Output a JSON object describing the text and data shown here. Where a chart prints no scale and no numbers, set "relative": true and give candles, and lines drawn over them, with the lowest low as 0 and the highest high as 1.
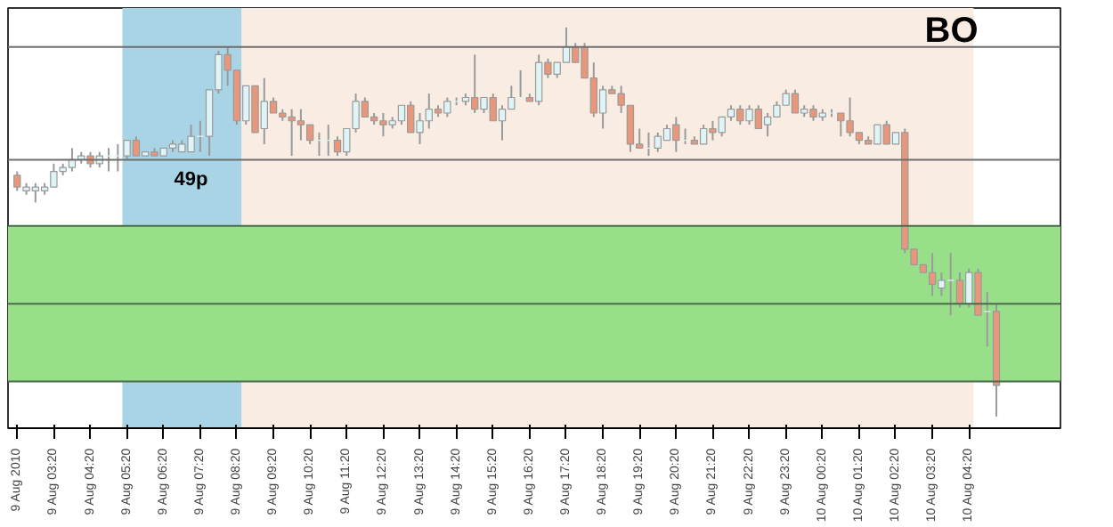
{
  "chart_data": {
    "type": "candlestick",
    "relative": true,
    "grid": false,
    "categories": [
      "9 Aug 2010",
      null,
      null,
      null,
      "9 Aug 03:20",
      null,
      null,
      null,
      "9 Aug 04:20",
      null,
      null,
      null,
      "9 Aug 05:20",
      null,
      null,
      null,
      "9 Aug 06:20",
      null,
      null,
      null,
      "9 Aug 07:20",
      null,
      null,
      null,
      "9 Aug 08:20",
      null,
      null,
      null,
      "9 Aug 09:20",
      null,
      null,
      null,
      "9 Aug 10:20",
      null,
      null,
      null,
      "9 Aug 11:20",
      null,
      null,
      null,
      "9 Aug 12:20",
      null,
      null,
      null,
      "9 Aug 13:20",
      null,
      null,
      null,
      "9 Aug 14:20",
      null,
      null,
      null,
      "9 Aug 15:20",
      null,
      null,
      null,
      "9 Aug 16:20",
      null,
      null,
      null,
      "9 Aug 17:20",
      null,
      null,
      null,
      "9 Aug 18:20",
      null,
      null,
      null,
      "9 Aug 19:20",
      null,
      null,
      null,
      "9 Aug 20:20",
      null,
      null,
      null,
      "9 Aug 21:20",
      null,
      null,
      null,
      "9 Aug 22:20",
      null,
      null,
      null,
      "9 Aug 23:20",
      null,
      null,
      null,
      "10 Aug 00:20",
      null,
      null,
      null,
      "10 Aug 01:20",
      null,
      null,
      null,
      "10 Aug 02:20",
      null,
      null,
      null,
      "10 Aug 03:20",
      null,
      null,
      null,
      "10 Aug 04:20",
      null,
      null,
      null
    ],
    "ohlc": [
      [
        0.62,
        0.63,
        0.58,
        0.59
      ],
      [
        0.58,
        0.6,
        0.57,
        0.59
      ],
      [
        0.58,
        0.6,
        0.55,
        0.59
      ],
      [
        0.58,
        0.6,
        0.57,
        0.59
      ],
      [
        0.59,
        0.65,
        0.59,
        0.63
      ],
      [
        0.63,
        0.65,
        0.62,
        0.64
      ],
      [
        0.64,
        0.69,
        0.63,
        0.66
      ],
      [
        0.66,
        0.68,
        0.65,
        0.67
      ],
      [
        0.67,
        0.68,
        0.64,
        0.65
      ],
      [
        0.65,
        0.68,
        0.64,
        0.67
      ],
      [
        0.67,
        0.69,
        0.63,
        0.67
      ],
      [
        0.67,
        0.7,
        0.63,
        0.67
      ],
      [
        0.67,
        0.71,
        0.66,
        0.71
      ],
      [
        0.71,
        0.72,
        0.67,
        0.67
      ],
      [
        0.67,
        0.68,
        0.67,
        0.68
      ],
      [
        0.68,
        0.69,
        0.67,
        0.67
      ],
      [
        0.67,
        0.69,
        0.67,
        0.69
      ],
      [
        0.69,
        0.71,
        0.68,
        0.7
      ],
      [
        0.68,
        0.71,
        0.68,
        0.7
      ],
      [
        0.68,
        0.75,
        0.68,
        0.72
      ],
      [
        0.72,
        0.76,
        0.68,
        0.72
      ],
      [
        0.72,
        0.84,
        0.67,
        0.84
      ],
      [
        0.84,
        0.94,
        0.83,
        0.93
      ],
      [
        0.93,
        0.95,
        0.85,
        0.89
      ],
      [
        0.89,
        0.89,
        0.75,
        0.76
      ],
      [
        0.76,
        0.85,
        0.75,
        0.85
      ],
      [
        0.85,
        0.85,
        0.73,
        0.73
      ],
      [
        0.74,
        0.87,
        0.7,
        0.81
      ],
      [
        0.81,
        0.82,
        0.78,
        0.78
      ],
      [
        0.78,
        0.79,
        0.76,
        0.77
      ],
      [
        0.77,
        0.79,
        0.67,
        0.76
      ],
      [
        0.76,
        0.79,
        0.71,
        0.75
      ],
      [
        0.75,
        0.75,
        0.7,
        0.71
      ],
      [
        0.71,
        0.73,
        0.67,
        0.71
      ],
      [
        0.71,
        0.75,
        0.67,
        0.71
      ],
      [
        0.71,
        0.72,
        0.67,
        0.68
      ],
      [
        0.68,
        0.74,
        0.67,
        0.74
      ],
      [
        0.74,
        0.83,
        0.73,
        0.81
      ],
      [
        0.81,
        0.82,
        0.77,
        0.77
      ],
      [
        0.77,
        0.78,
        0.75,
        0.76
      ],
      [
        0.76,
        0.78,
        0.72,
        0.75
      ],
      [
        0.75,
        0.77,
        0.74,
        0.76
      ],
      [
        0.76,
        0.8,
        0.75,
        0.8
      ],
      [
        0.8,
        0.81,
        0.73,
        0.73
      ],
      [
        0.73,
        0.78,
        0.7,
        0.76
      ],
      [
        0.76,
        0.83,
        0.74,
        0.79
      ],
      [
        0.79,
        0.8,
        0.77,
        0.78
      ],
      [
        0.78,
        0.82,
        0.77,
        0.81
      ],
      [
        0.81,
        0.82,
        0.8,
        0.81
      ],
      [
        0.81,
        0.83,
        0.8,
        0.82
      ],
      [
        0.82,
        0.93,
        0.78,
        0.79
      ],
      [
        0.79,
        0.82,
        0.78,
        0.82
      ],
      [
        0.82,
        0.83,
        0.76,
        0.76
      ],
      [
        0.76,
        0.8,
        0.71,
        0.79
      ],
      [
        0.79,
        0.85,
        0.79,
        0.82
      ],
      [
        0.82,
        0.89,
        0.82,
        0.82
      ],
      [
        0.82,
        0.83,
        0.81,
        0.81
      ],
      [
        0.81,
        0.93,
        0.8,
        0.91
      ],
      [
        0.91,
        0.92,
        0.87,
        0.88
      ],
      [
        0.88,
        0.91,
        0.87,
        0.91
      ],
      [
        0.91,
        1.0,
        0.91,
        0.95
      ],
      [
        0.95,
        0.96,
        0.91,
        0.91
      ],
      [
        0.95,
        0.96,
        0.87,
        0.87
      ],
      [
        0.87,
        0.91,
        0.77,
        0.78
      ],
      [
        0.78,
        0.85,
        0.74,
        0.84
      ],
      [
        0.84,
        0.85,
        0.83,
        0.83
      ],
      [
        0.83,
        0.85,
        0.78,
        0.8
      ],
      [
        0.8,
        0.8,
        0.68,
        0.7
      ],
      [
        0.7,
        0.74,
        0.69,
        0.69
      ],
      [
        0.69,
        0.73,
        0.67,
        0.69
      ],
      [
        0.69,
        0.73,
        0.68,
        0.72
      ],
      [
        0.71,
        0.75,
        0.71,
        0.74
      ],
      [
        0.75,
        0.77,
        0.68,
        0.71
      ],
      [
        0.71,
        0.74,
        0.7,
        0.71
      ],
      [
        0.71,
        0.72,
        0.7,
        0.7
      ],
      [
        0.7,
        0.75,
        0.7,
        0.74
      ],
      [
        0.74,
        0.76,
        0.71,
        0.73
      ],
      [
        0.73,
        0.77,
        0.72,
        0.77
      ],
      [
        0.77,
        0.8,
        0.76,
        0.79
      ],
      [
        0.79,
        0.8,
        0.75,
        0.76
      ],
      [
        0.76,
        0.8,
        0.75,
        0.79
      ],
      [
        0.79,
        0.8,
        0.74,
        0.74
      ],
      [
        0.75,
        0.78,
        0.72,
        0.77
      ],
      [
        0.77,
        0.81,
        0.77,
        0.8
      ],
      [
        0.8,
        0.84,
        0.8,
        0.83
      ],
      [
        0.83,
        0.84,
        0.78,
        0.78
      ],
      [
        0.78,
        0.8,
        0.77,
        0.79
      ],
      [
        0.79,
        0.8,
        0.76,
        0.77
      ],
      [
        0.77,
        0.79,
        0.76,
        0.78
      ],
      [
        0.78,
        0.79,
        0.77,
        0.78
      ],
      [
        0.78,
        0.78,
        0.72,
        0.76
      ],
      [
        0.76,
        0.82,
        0.72,
        0.73
      ],
      [
        0.73,
        0.73,
        0.7,
        0.71
      ],
      [
        0.71,
        0.72,
        0.7,
        0.7
      ],
      [
        0.7,
        0.75,
        0.7,
        0.75
      ],
      [
        0.75,
        0.76,
        0.7,
        0.7
      ],
      [
        0.7,
        0.73,
        0.7,
        0.73
      ],
      [
        0.73,
        0.74,
        0.42,
        0.43
      ],
      [
        0.43,
        0.43,
        0.39,
        0.39
      ],
      [
        0.39,
        0.39,
        0.37,
        0.37
      ],
      [
        0.37,
        0.42,
        0.31,
        0.34
      ],
      [
        0.33,
        0.37,
        0.31,
        0.35
      ],
      [
        0.35,
        0.42,
        0.26,
        0.35
      ],
      [
        0.35,
        0.37,
        0.28,
        0.29
      ],
      [
        0.29,
        0.38,
        0.28,
        0.37
      ],
      [
        0.37,
        0.38,
        0.26,
        0.26
      ],
      [
        0.27,
        0.32,
        0.18,
        0.27
      ],
      [
        0.27,
        0.29,
        0.0,
        0.08
      ]
    ],
    "colors": [
      "#e9977b",
      "#dff4f6",
      "#dff4f6",
      "#dff4f6",
      "#dff4f6",
      "#dff4f6",
      "#dff4f6",
      "#dff4f6",
      "#e9977b",
      "#dff4f6",
      "#dff4f6",
      "#dff4f6",
      "#dff4f6",
      "#e9977b",
      "#dff4f6",
      "#e9977b",
      "#dff4f6",
      "#dff4f6",
      "#dff4f6",
      "#dff4f6",
      "#dff4f6",
      "#dff4f6",
      "#dff4f6",
      "#e9977b",
      "#e9977b",
      "#dff4f6",
      "#e9977b",
      "#dff4f6",
      "#e9977b",
      "#e9977b",
      "#e9977b",
      "#e9977b",
      "#e9977b",
      "#dff4f6",
      "#dff4f6",
      "#e9977b",
      "#dff4f6",
      "#dff4f6",
      "#e9977b",
      "#e9977b",
      "#e9977b",
      "#dff4f6",
      "#dff4f6",
      "#e9977b",
      "#dff4f6",
      "#dff4f6",
      "#e9977b",
      "#dff4f6",
      "#dff4f6",
      "#dff4f6",
      "#e9977b",
      "#dff4f6",
      "#e9977b",
      "#dff4f6",
      "#dff4f6",
      "#dff4f6",
      "#e9977b",
      "#dff4f6",
      "#e9977b",
      "#dff4f6",
      "#dff4f6",
      "#e9977b",
      "#e9977b",
      "#e9977b",
      "#dff4f6",
      "#e9977b",
      "#e9977b",
      "#e9977b",
      "#e9977b",
      "#dff4f6",
      "#dff4f6",
      "#dff4f6",
      "#e9977b",
      "#dff4f6",
      "#e9977b",
      "#dff4f6",
      "#e9977b",
      "#dff4f6",
      "#dff4f6",
      "#e9977b",
      "#dff4f6",
      "#e9977b",
      "#dff4f6",
      "#dff4f6",
      "#dff4f6",
      "#e9977b",
      "#dff4f6",
      "#e9977b",
      "#dff4f6",
      "#dff4f6",
      "#e9977b",
      "#e9977b",
      "#e9977b",
      "#e9977b",
      "#dff4f6",
      "#e9977b",
      "#dff4f6",
      "#e9977b",
      "#e9977b",
      "#e9977b",
      "#e9977b",
      "#dff4f6",
      "#dff4f6",
      "#e9977b",
      "#dff4f6",
      "#e9977b",
      "#dff4f6",
      "#e9977b"
    ],
    "ref_lines": [
      {
        "axis": "y",
        "value": 0.95,
        "color": "#6e6e6e"
      },
      {
        "axis": "y",
        "value": 0.66,
        "color": "#6e6e6e"
      },
      {
        "axis": "y",
        "value": 0.49,
        "color": "#4a6b4a"
      },
      {
        "axis": "y",
        "value": 0.29,
        "color": "#4a6b4a"
      },
      {
        "axis": "y",
        "value": 0.09,
        "color": "#4a6b4a"
      }
    ],
    "bands": [
      {
        "axis": "x",
        "from": "9 Aug 08:20",
        "to": "10 Aug 04:20",
        "color": "#f9ede3"
      },
      {
        "axis": "x",
        "from": "9 Aug 05:20",
        "to": "9 Aug 08:20",
        "color": "#a8d4e6"
      },
      {
        "axis": "y",
        "from": 0.09,
        "to": 0.49,
        "color": "#98df8a"
      }
    ],
    "annotations": [
      "BO",
      "49p"
    ]
  }
}
